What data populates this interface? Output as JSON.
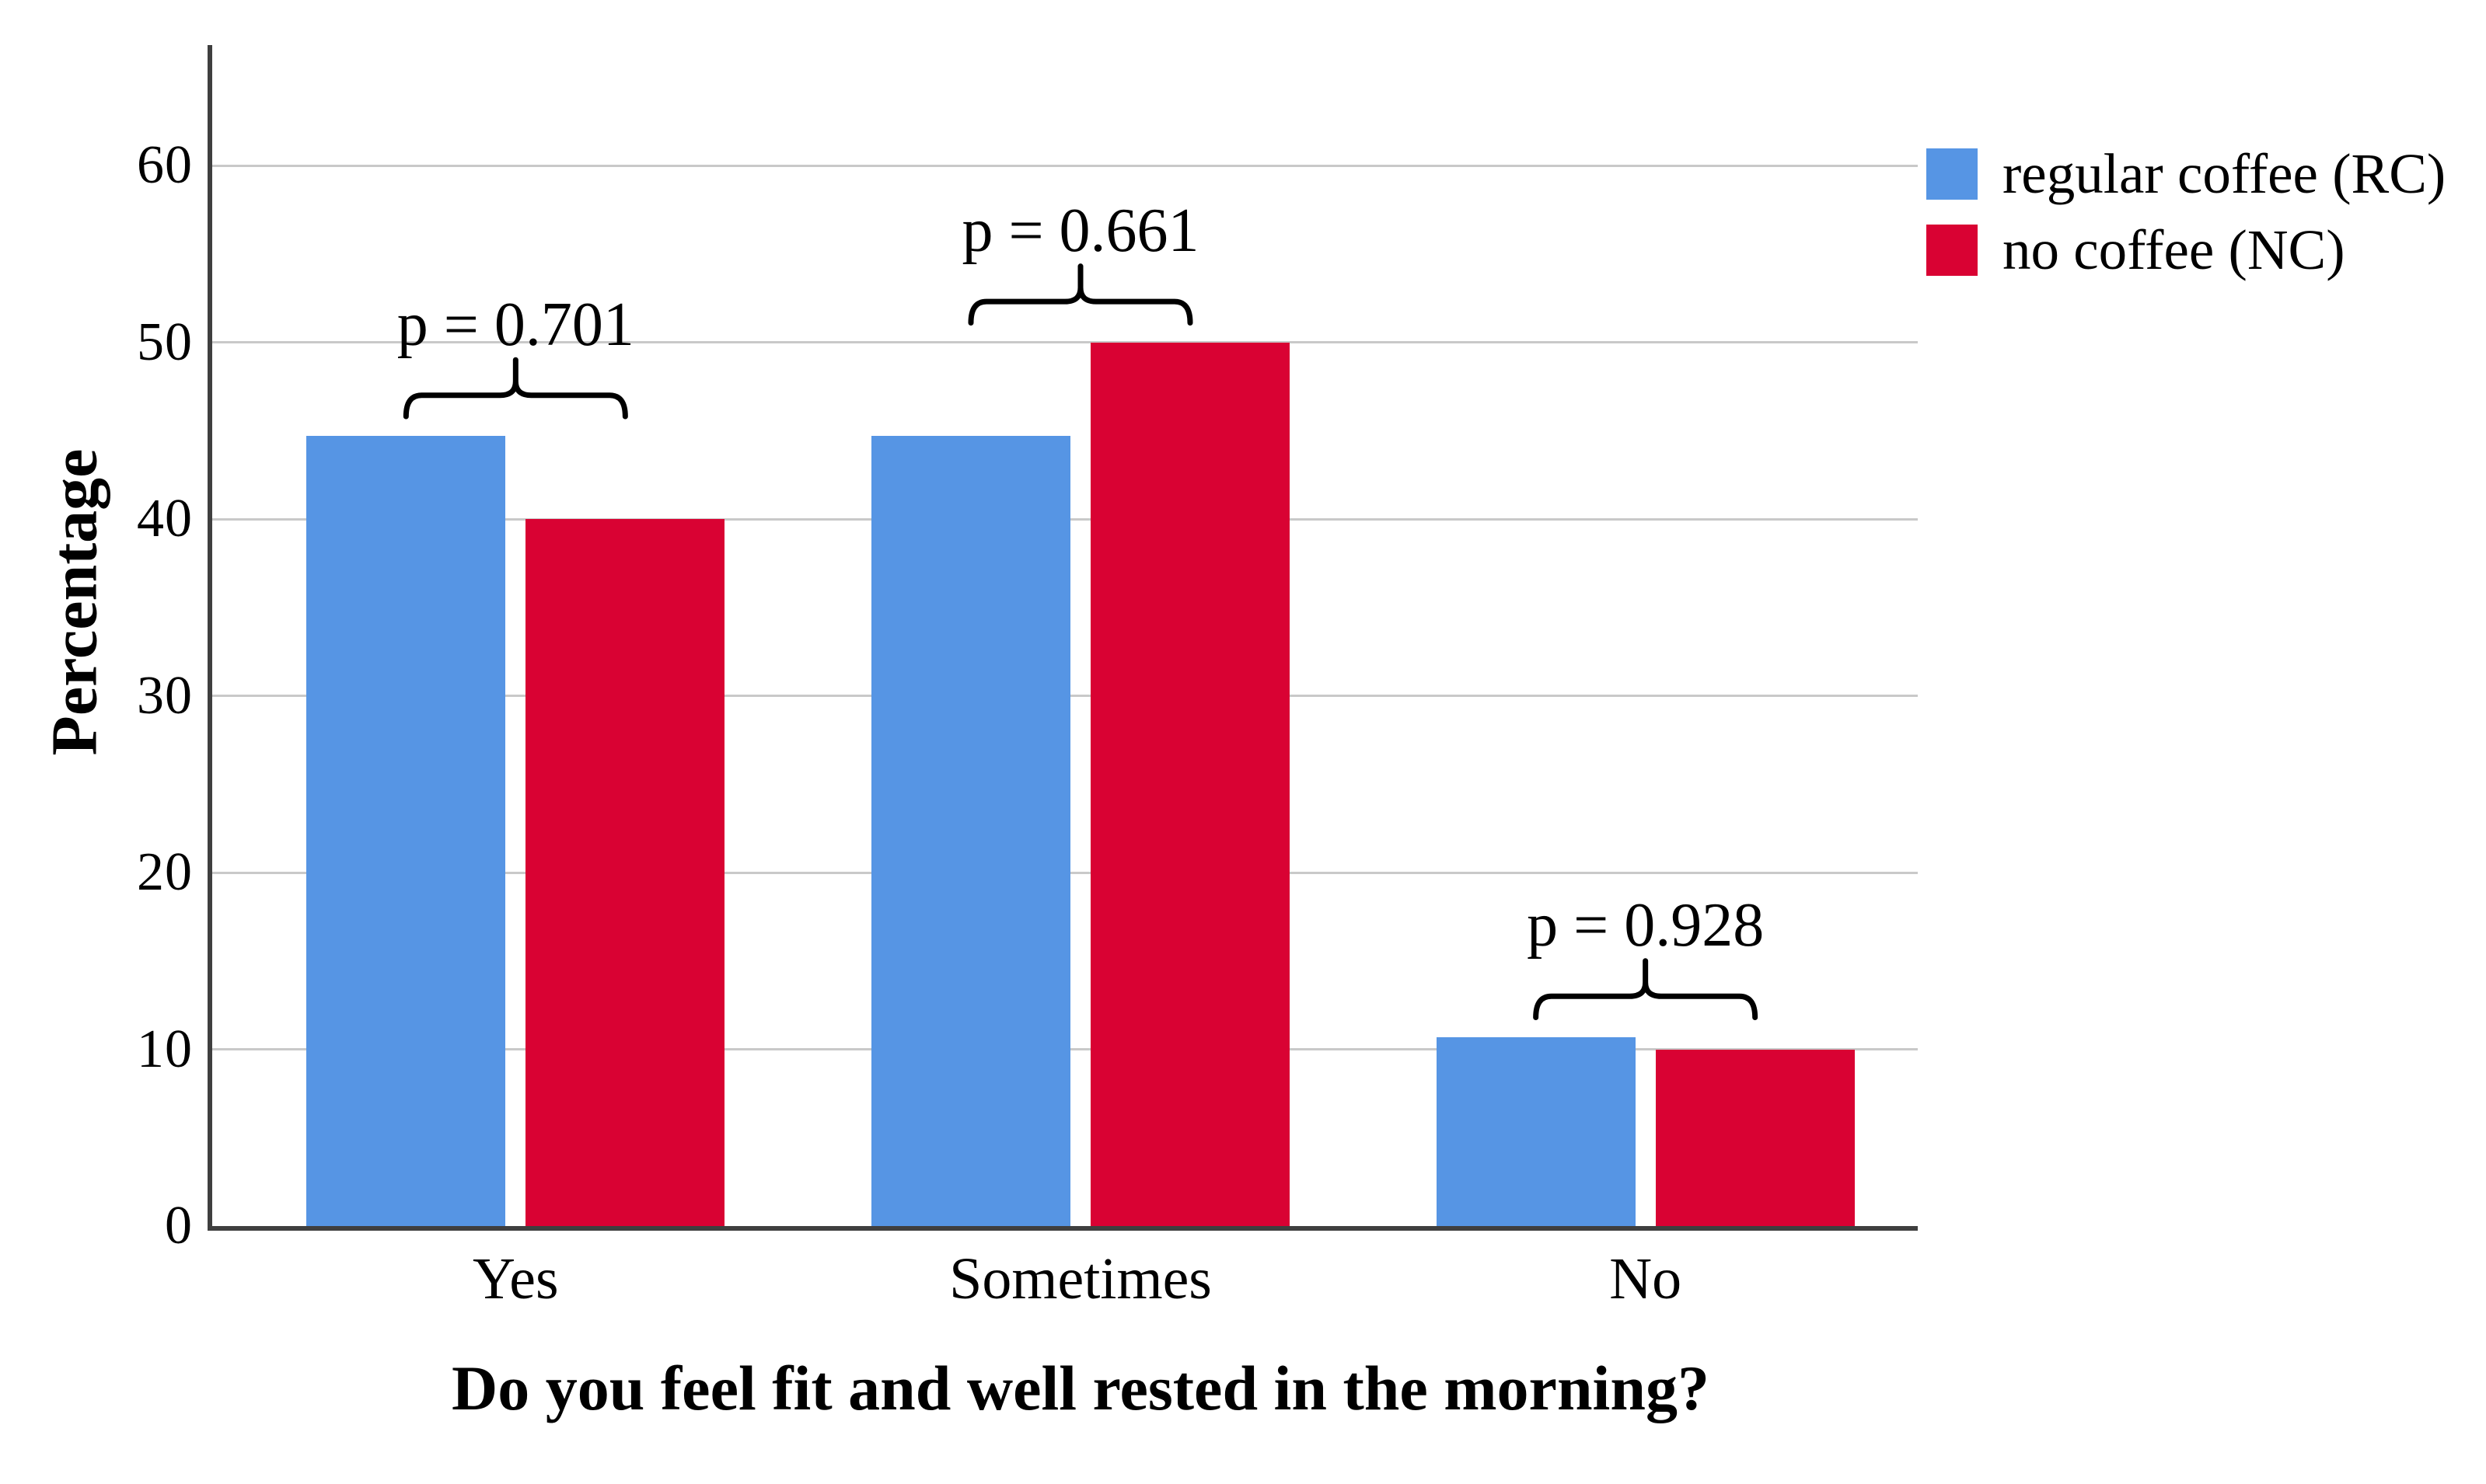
{
  "figure": {
    "background": "#ffffff",
    "text_color": "#000000",
    "axis_color": "#3f3f3f",
    "gridline_color": "#c9c9c9"
  },
  "chart_data": {
    "type": "bar",
    "title": "",
    "xlabel": "Do you feel fit and well rested in the morning?",
    "ylabel": "Percentage",
    "categories": [
      "Yes",
      "Sometimes",
      "No"
    ],
    "series": [
      {
        "name": "regular coffee (RC)",
        "color": "#5695E4",
        "values": [
          44.7,
          44.7,
          10.7
        ]
      },
      {
        "name": "no coffee (NC)",
        "color": "#D90233",
        "values": [
          40.0,
          50.0,
          10.0
        ]
      }
    ],
    "annotations": [
      {
        "group": "Yes",
        "label": "p = 0.701",
        "p_value": 0.701
      },
      {
        "group": "Sometimes",
        "label": "p = 0.661",
        "p_value": 0.661
      },
      {
        "group": "No",
        "label": "p = 0.928",
        "p_value": 0.928
      }
    ],
    "ylim": [
      0,
      66
    ],
    "yticks": [
      0,
      10,
      20,
      30,
      40,
      50,
      60
    ],
    "grid": "horizontal",
    "legend_position": "top-right"
  }
}
